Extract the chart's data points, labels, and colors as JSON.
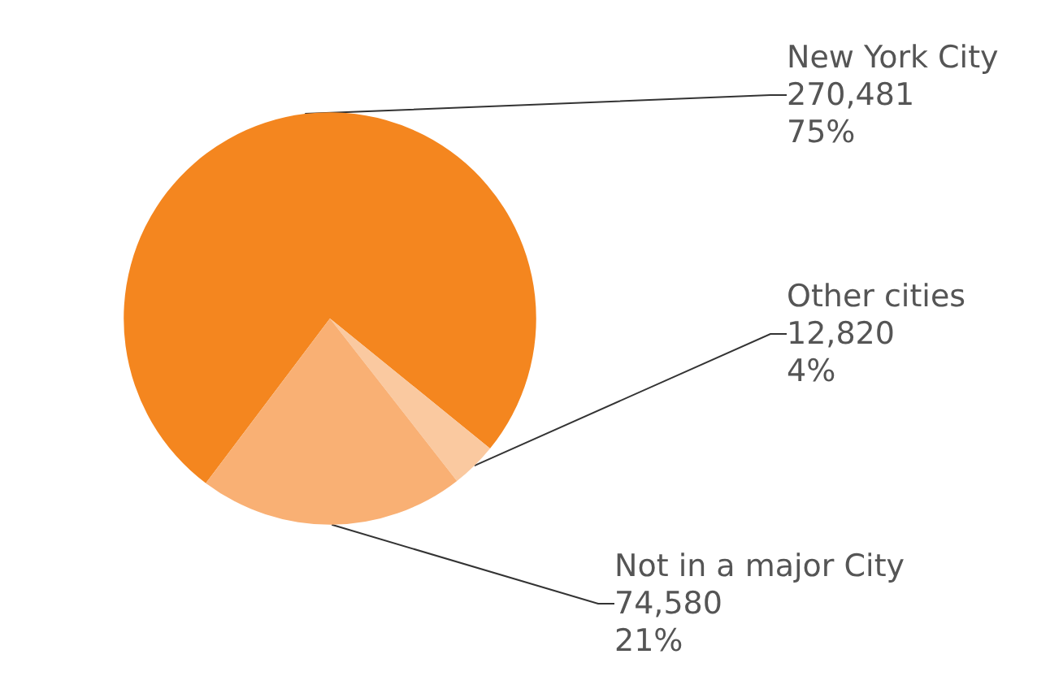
{
  "chart_data": {
    "type": "pie",
    "categories": [
      "New York City",
      "Other cities",
      "Not in a major City"
    ],
    "values": [
      270481,
      12820,
      74580
    ],
    "value_labels": [
      "270,481\n75%",
      "12,820\n4%",
      "74,580\n21%"
    ],
    "colors": [
      "#f4861f",
      "#fac9a0",
      "#f9b074"
    ],
    "legend": false
  }
}
